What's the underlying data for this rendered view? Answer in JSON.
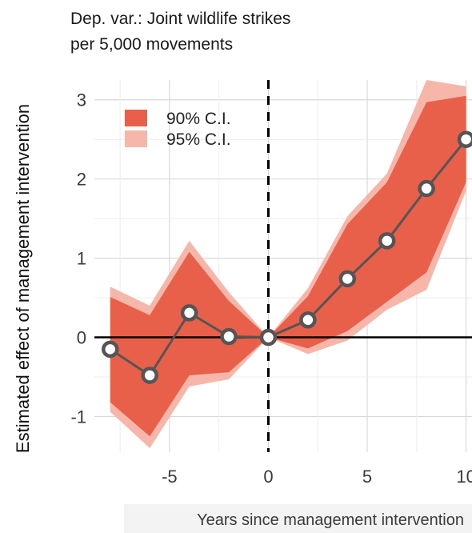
{
  "chart_data": {
    "type": "line",
    "title_line1": "Dep. var.: Joint wildlife strikes",
    "title_line2": "per 5,000 movements",
    "ylabel": "Estimated effect of management intervention",
    "xlabel": "Years since management intervention",
    "xlim": [
      -8.8,
      10.3
    ],
    "ylim": [
      -1.45,
      3.25
    ],
    "x_ticks": [
      -5,
      0,
      5,
      10
    ],
    "x_tick_labels": [
      "-5",
      "0",
      "5",
      "10"
    ],
    "y_ticks": [
      -1,
      0,
      1,
      2,
      3
    ],
    "y_tick_labels": [
      "-1",
      "0",
      "1",
      "2",
      "3"
    ],
    "x": [
      -8,
      -6,
      -4,
      -2,
      0,
      2,
      4,
      6,
      8,
      10
    ],
    "estimate": [
      -0.15,
      -0.48,
      0.31,
      0.01,
      0.0,
      0.22,
      0.74,
      1.22,
      1.88,
      2.5
    ],
    "ci90_lower": [
      -0.82,
      -1.25,
      -0.48,
      -0.44,
      0.0,
      -0.14,
      0.08,
      0.45,
      0.82,
      1.96
    ],
    "ci90_upper": [
      0.51,
      0.28,
      1.08,
      0.46,
      0.0,
      0.52,
      1.43,
      1.96,
      2.97,
      3.05
    ],
    "ci95_lower": [
      -0.94,
      -1.4,
      -0.62,
      -0.53,
      0.0,
      -0.21,
      -0.04,
      0.35,
      0.6,
      1.85
    ],
    "ci95_upper": [
      0.64,
      0.4,
      1.22,
      0.57,
      0.0,
      0.62,
      1.53,
      2.07,
      3.25,
      3.17
    ],
    "legend": [
      {
        "label": "90% C.I.",
        "color": "#e8604a"
      },
      {
        "label": "95% C.I.",
        "color": "#f6b6aa"
      }
    ],
    "legend_position": "top-left",
    "grid": true,
    "reference_hline": 0,
    "reference_vline": 0,
    "colors": {
      "ci90": "#e8604a",
      "ci95": "#f6b6aa",
      "line": "#555555",
      "marker_fill": "#ffffff",
      "grid": "#d9d9d9"
    }
  }
}
